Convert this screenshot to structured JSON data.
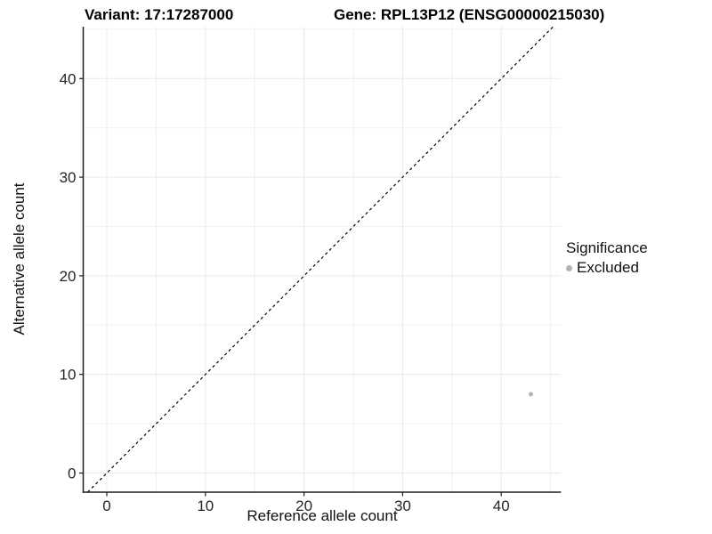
{
  "chart_data": {
    "type": "scatter",
    "titles": {
      "variant": "Variant: 17:17287000",
      "gene": "Gene: RPL13P12 (ENSG00000215030)"
    },
    "xlabel": "Reference allele count",
    "ylabel": "Alternative allele count",
    "xticks": [
      0,
      10,
      20,
      30,
      40
    ],
    "yticks": [
      0,
      10,
      20,
      30,
      40
    ],
    "minor_ticks": [
      5,
      15,
      25,
      35,
      45
    ],
    "xlim": [
      -2.39,
      46.06
    ],
    "ylim": [
      -1.94,
      45.26
    ],
    "grid": true,
    "identity_line": {
      "style": "dashed",
      "slope": 1,
      "intercept": 0,
      "color": "#000000"
    },
    "points": [
      {
        "x": 43,
        "y": 8,
        "significance": "Excluded"
      }
    ],
    "legend": {
      "position": "right",
      "title": "Significance",
      "items": [
        {
          "label": "Excluded",
          "color": "#b3b3b3"
        }
      ]
    },
    "colors": {
      "background": "#ffffff",
      "grid_major": "#e9e9e9",
      "grid_minor": "#f0f0f0",
      "axis_line": "#1c1c1c",
      "tick_mark": "#1c1c1c",
      "tick_text": "#262626",
      "point": "#b3b3b3"
    }
  }
}
